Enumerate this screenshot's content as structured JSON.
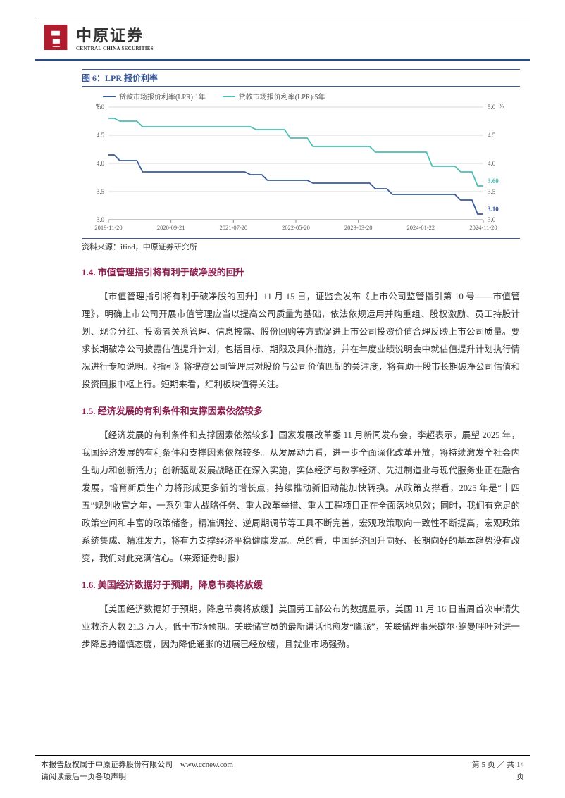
{
  "header": {
    "logo_cn": "中原证券",
    "logo_en": "CENTRAL CHINA SECURITIES",
    "logo_color": "#b01c2e"
  },
  "figure": {
    "caption": "图 6：LPR 报价利率",
    "source": "资料来源：ifind，中原证券研究所",
    "type": "line",
    "y_label_left": "%",
    "y_label_right": "%",
    "ylim": [
      3.0,
      5.0
    ],
    "ytick_step": 0.5,
    "x_categories": [
      "2019-11-20",
      "2020-09-21",
      "2021-07-20",
      "2022-05-20",
      "2023-03-20",
      "2024-01-22",
      "2024-11-20"
    ],
    "background_color": "#ffffff",
    "grid_color": "#d9d9d9",
    "axis_color": "#888888",
    "tick_fontsize": 9,
    "legend_fontsize": 10,
    "series": [
      {
        "name": "贷款市场报价利率(LPR):1年",
        "color": "#3a5a9a",
        "end_label": "3.10",
        "data": [
          4.15,
          4.15,
          4.05,
          4.05,
          4.05,
          4.05,
          3.85,
          3.85,
          3.85,
          3.85,
          3.85,
          3.85,
          3.85,
          3.85,
          3.85,
          3.85,
          3.85,
          3.85,
          3.85,
          3.85,
          3.85,
          3.85,
          3.85,
          3.85,
          3.85,
          3.8,
          3.8,
          3.8,
          3.7,
          3.7,
          3.7,
          3.7,
          3.7,
          3.7,
          3.7,
          3.7,
          3.65,
          3.65,
          3.65,
          3.65,
          3.65,
          3.65,
          3.65,
          3.65,
          3.65,
          3.65,
          3.65,
          3.55,
          3.55,
          3.55,
          3.45,
          3.45,
          3.45,
          3.45,
          3.45,
          3.45,
          3.45,
          3.45,
          3.45,
          3.45,
          3.45,
          3.45,
          3.35,
          3.35,
          3.35,
          3.1,
          3.1
        ]
      },
      {
        "name": "贷款市场报价利率(LPR):5年",
        "color": "#4bbfb4",
        "end_label": "3.60",
        "data": [
          4.8,
          4.8,
          4.75,
          4.75,
          4.75,
          4.75,
          4.65,
          4.65,
          4.65,
          4.65,
          4.65,
          4.65,
          4.65,
          4.65,
          4.65,
          4.65,
          4.65,
          4.65,
          4.65,
          4.65,
          4.65,
          4.65,
          4.65,
          4.65,
          4.65,
          4.65,
          4.6,
          4.6,
          4.6,
          4.6,
          4.6,
          4.6,
          4.45,
          4.45,
          4.45,
          4.45,
          4.3,
          4.3,
          4.3,
          4.3,
          4.3,
          4.3,
          4.3,
          4.3,
          4.3,
          4.3,
          4.3,
          4.2,
          4.2,
          4.2,
          4.2,
          4.2,
          4.2,
          4.2,
          4.2,
          4.2,
          4.2,
          3.95,
          3.95,
          3.95,
          3.95,
          3.95,
          3.85,
          3.85,
          3.85,
          3.6,
          3.6
        ]
      }
    ]
  },
  "sections": [
    {
      "heading": "1.4. 市值管理指引将有利于破净股的回升",
      "paragraphs": [
        "【市值管理指引将有利于破净股的回升】11 月 15 日，证监会发布《上市公司监管指引第 10 号——市值管理》，明确上市公司开展市值管理应当以提高公司质量为基础，依法依规运用并购重组、股权激励、员工持股计划、现金分红、投资者关系管理、信息披露、股份回购等方式促进上市公司投资价值合理反映上市公司质量。要求长期破净公司披露估值提升计划，包括目标、期限及具体措施，并在年度业绩说明会中就估值提升计划执行情况进行专项说明。《指引》将提高公司管理层对股价与公司价值匹配的关注度，将有助于股市长期破净公司估值和投资回报中枢上行。短期来看，红利板块值得关注。"
      ]
    },
    {
      "heading": "1.5. 经济发展的有利条件和支撑因素依然较多",
      "paragraphs": [
        "【经济发展的有利条件和支撑因素依然较多】国家发展改革委 11 月新闻发布会，李超表示，展望 2025 年，我国经济发展的有利条件和支撑因素依然较多。从发展动力看，进一步全面深化改革开放，将持续激发全社会内生动力和创新活力；创新驱动发展战略正在深入实施，实体经济与数字经济、先进制造业与现代服务业正在融合发展，培育新质生产力将形成更多新的增长点，持续推动新旧动能加快转换。从政策支撑看，2025 年是“十四五”规划收官之年，一系列重大战略任务、重大改革举措、重大工程项目正在全面落地见效；同时，我们有充足的政策空间和丰富的政策储备，精准调控、逆周期调节等工具不断完善，宏观政策取向一致性不断提高，宏观政策系统集成、精准发力，将有力支撑经济平稳健康发展。总的看，中国经济回升向好、长期向好的基本趋势没有改变，我们对此充满信心。（来源证券时报）"
      ]
    },
    {
      "heading": "1.6. 美国经济数据好于预期，降息节奏将放缓",
      "paragraphs": [
        "【美国经济数据好于预期，降息节奏将放缓】美国劳工部公布的数据显示，美国 11 月 16 日当周首次申请失业救济人数 21.3 万人，低于市场预期。美联储官员的最新讲话也愈发“鹰派”，美联储理事米歇尔·鲍曼呼吁对进一步降息持谨慎态度，因为降低通胀的进展已经放缓，且就业市场强劲。"
      ]
    }
  ],
  "footer": {
    "line1": "本报告版权属于中原证券股份有限公司　www.ccnew.com",
    "line2": "请阅读最后一页各项声明",
    "page_label": "第 5 页 ／ 共 14",
    "page_suffix": "页"
  }
}
